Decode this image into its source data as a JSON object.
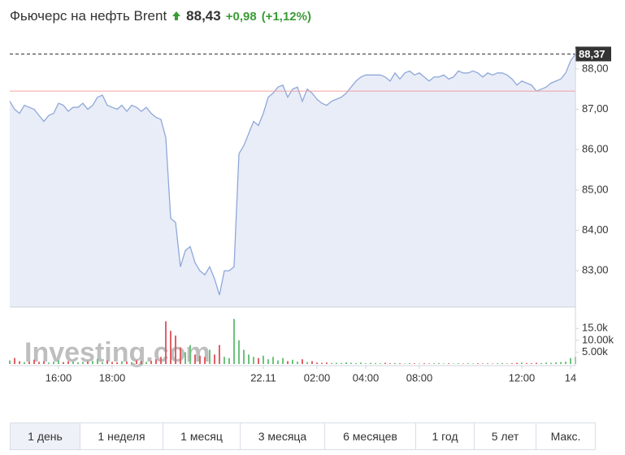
{
  "header": {
    "title": "Фьючерс на нефть Brent",
    "price": "88,43",
    "change": "+0,98",
    "change_pct": "(+1,12%)"
  },
  "chart_data": [
    {
      "type": "line",
      "color": "#8fa8d8",
      "fill": "#e9edf8",
      "categories": [
        null,
        null,
        null,
        null,
        null,
        null,
        null,
        null,
        null,
        null,
        "16:00",
        null,
        null,
        null,
        null,
        null,
        null,
        null,
        null,
        null,
        null,
        "18:00",
        null,
        null,
        null,
        null,
        null,
        null,
        null,
        null,
        null,
        null,
        null,
        null,
        null,
        null,
        null,
        null,
        null,
        null,
        null,
        null,
        null,
        null,
        null,
        null,
        null,
        null,
        null,
        null,
        null,
        null,
        "22.11",
        null,
        null,
        null,
        null,
        null,
        null,
        null,
        null,
        null,
        null,
        "02:00",
        null,
        null,
        null,
        null,
        null,
        null,
        null,
        null,
        null,
        "04:00",
        null,
        null,
        null,
        null,
        null,
        null,
        null,
        null,
        null,
        null,
        "08:00",
        null,
        null,
        null,
        null,
        null,
        null,
        null,
        null,
        null,
        null,
        null,
        null,
        null,
        null,
        null,
        null,
        null,
        null,
        null,
        null,
        "12:00",
        null,
        null,
        null,
        null,
        null,
        null,
        null,
        null,
        null,
        "14",
        null
      ],
      "values": [
        87.2,
        87.0,
        86.9,
        87.1,
        87.05,
        87.0,
        86.85,
        86.7,
        86.85,
        86.9,
        87.15,
        87.1,
        86.95,
        87.05,
        87.05,
        87.15,
        87.0,
        87.1,
        87.3,
        87.35,
        87.1,
        87.05,
        87.0,
        87.1,
        86.95,
        87.1,
        87.05,
        86.95,
        87.05,
        86.9,
        86.8,
        86.75,
        86.3,
        84.3,
        84.2,
        83.1,
        83.5,
        83.6,
        83.2,
        83.0,
        82.9,
        83.1,
        82.8,
        82.4,
        83.0,
        83.0,
        83.1,
        85.9,
        86.1,
        86.4,
        86.7,
        86.6,
        86.9,
        87.3,
        87.4,
        87.55,
        87.6,
        87.3,
        87.5,
        87.55,
        87.2,
        87.5,
        87.4,
        87.25,
        87.15,
        87.1,
        87.2,
        87.25,
        87.3,
        87.4,
        87.55,
        87.7,
        87.8,
        87.85,
        87.85,
        87.85,
        87.85,
        87.8,
        87.7,
        87.9,
        87.75,
        87.9,
        87.95,
        87.85,
        87.9,
        87.8,
        87.7,
        87.8,
        87.8,
        87.85,
        87.75,
        87.8,
        87.95,
        87.9,
        87.9,
        87.95,
        87.9,
        87.8,
        87.9,
        87.85,
        87.9,
        87.9,
        87.85,
        87.75,
        87.6,
        87.7,
        87.65,
        87.6,
        87.45,
        87.5,
        87.55,
        87.65,
        87.7,
        87.75,
        87.9,
        88.2,
        88.37
      ],
      "ylim": [
        82.1,
        88.5
      ],
      "yticks": [
        {
          "value": 83,
          "label": "83,00"
        },
        {
          "value": 84,
          "label": "84,00"
        },
        {
          "value": 85,
          "label": "85,00"
        },
        {
          "value": 86,
          "label": "86,00"
        },
        {
          "value": 87,
          "label": "87,00"
        },
        {
          "value": 88,
          "label": "88,00"
        }
      ],
      "last_value": {
        "value": 88.37,
        "label": "88,37"
      },
      "reference_line": 87.45,
      "reference_color": "#f2a0a0"
    },
    {
      "type": "bar",
      "up_color": "#6cc27d",
      "down_color": "#e06066",
      "values": [
        1500,
        2500,
        1200,
        800,
        1000,
        1800,
        900,
        1200,
        600,
        1000,
        1500,
        800,
        1200,
        1000,
        700,
        900,
        1100,
        1300,
        2200,
        800,
        1500,
        900,
        700,
        1200,
        1000,
        800,
        1500,
        1200,
        900,
        1300,
        2000,
        3000,
        18000,
        14000,
        12000,
        7000,
        5000,
        8000,
        4000,
        3500,
        3000,
        6000,
        4000,
        8000,
        3000,
        2500,
        19000,
        10000,
        6000,
        4000,
        3000,
        2500,
        3500,
        2000,
        3000,
        1500,
        2500,
        1200,
        1800,
        1000,
        2000,
        800,
        1200,
        600,
        500,
        600,
        400,
        500,
        400,
        700,
        500,
        400,
        600,
        300,
        500,
        400,
        300,
        500,
        300,
        400,
        300,
        200,
        400,
        300,
        200,
        300,
        200,
        300,
        400,
        200,
        300,
        200,
        300,
        200,
        300,
        200,
        300,
        200,
        300,
        200,
        300,
        400,
        200,
        300,
        500,
        600,
        400,
        300,
        500,
        400,
        600,
        500,
        700,
        800,
        1000,
        2500,
        3000
      ],
      "ylim": [
        0,
        24000
      ],
      "yticks": [
        {
          "value": 5000,
          "label": "5.00k"
        },
        {
          "value": 10000,
          "label": "10.00k"
        },
        {
          "value": 15000,
          "label": "15.0k"
        }
      ],
      "watermark": "Investing.com"
    }
  ],
  "tabs": [
    "1 день",
    "1 неделя",
    "1 месяц",
    "3 месяца",
    "6 месяцев",
    "1 год",
    "5 лет",
    "Макс."
  ],
  "active_tab": 0
}
